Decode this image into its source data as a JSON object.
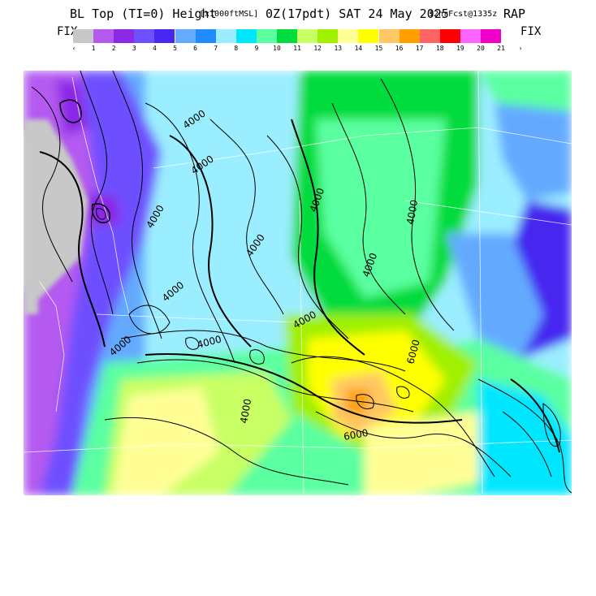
{
  "title": {
    "part1": "BL Top (TI=0) Height",
    "part2": "[x1000ftMSL]",
    "part3": "0Z(17pdt) SAT 24 May 2025",
    "part4": "12hrFcst@1335z",
    "part5": "RAP"
  },
  "legend": {
    "fix_left": "FIX",
    "fix_right": "FIX",
    "arrow_left": "‹",
    "arrow_right": "›",
    "labels": [
      "1",
      "2",
      "3",
      "4",
      "5",
      "6",
      "7",
      "8",
      "9",
      "10",
      "11",
      "12",
      "13",
      "14",
      "15",
      "16",
      "17",
      "18",
      "19",
      "20",
      "21"
    ],
    "colors": [
      "#c8c8c8",
      "#b45af0",
      "#8c28e6",
      "#6e50ff",
      "#4628f0",
      "#64aaff",
      "#1e8cff",
      "#9beeff",
      "#00e6ff",
      "#5affa0",
      "#00dc3c",
      "#c8ff64",
      "#a0f000",
      "#ffff96",
      "#ffff00",
      "#ffc864",
      "#ffa000",
      "#ff6464",
      "#ff0000",
      "#ff64ff",
      "#f000c8"
    ]
  },
  "map": {
    "contour_labels": [
      "4000",
      "4000",
      "4000",
      "4000",
      "4000",
      "4000",
      "4000",
      "4000",
      "4000",
      "4000",
      "4000",
      "4000",
      "6000",
      "6000"
    ]
  }
}
